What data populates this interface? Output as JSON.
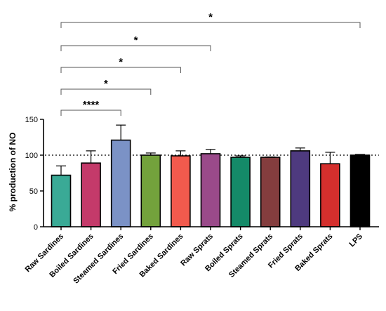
{
  "chart_data": {
    "type": "bar",
    "title": "",
    "xlabel": "",
    "ylabel": "% production of NO",
    "ylim": [
      0,
      150
    ],
    "yticks": [
      0,
      50,
      100,
      150
    ],
    "reference_line": 100,
    "categories": [
      "Raw Sardines",
      "Boiled Sardines",
      "Steamed Sardines",
      "Fried  Sardines",
      "Baked Sardines",
      "Raw Sprats",
      "Boiled Sprats",
      "Steamed Sprats",
      "Fried  Sprats",
      "Baked Sprats",
      "LPS"
    ],
    "values": [
      72,
      89,
      121,
      100,
      99,
      102,
      97,
      97,
      106,
      88,
      100
    ],
    "errors": [
      13,
      17,
      21,
      3,
      7,
      6,
      2,
      0.5,
      4,
      16,
      1
    ],
    "colors": [
      "#3aaa96",
      "#c43a6a",
      "#7b92c6",
      "#73a23c",
      "#f25a4d",
      "#9a4a8a",
      "#148a68",
      "#843d3e",
      "#4e3a7f",
      "#d42f2d",
      "#000000"
    ],
    "comparisons": [
      {
        "from": "Raw Sardines",
        "to": "Steamed Sardines",
        "label": "****"
      },
      {
        "from": "Raw Sardines",
        "to": "Fried  Sardines",
        "label": "*"
      },
      {
        "from": "Raw Sardines",
        "to": "Baked Sardines",
        "label": "*"
      },
      {
        "from": "Raw Sardines",
        "to": "Raw Sprats",
        "label": "*"
      },
      {
        "from": "Raw Sardines",
        "to": "LPS",
        "label": "*"
      }
    ]
  }
}
